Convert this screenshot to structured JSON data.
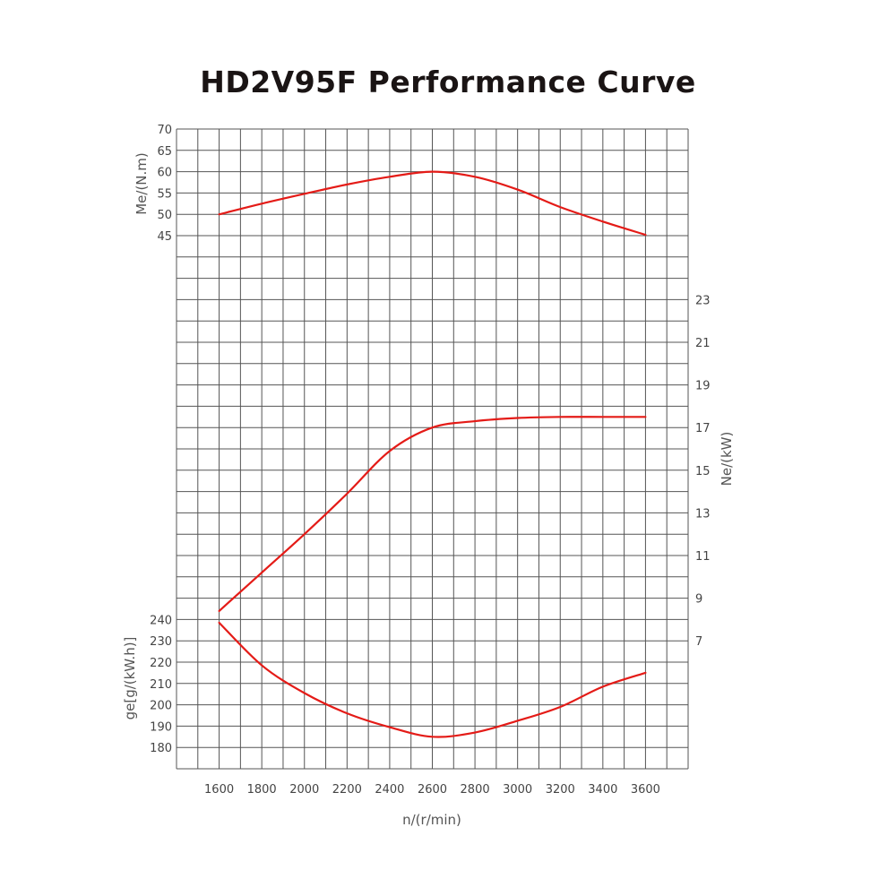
{
  "title": "HD2V95F Performance Curve",
  "chart_data": {
    "type": "line",
    "title": "HD2V95F Performance Curve",
    "x": [
      1600,
      1800,
      2000,
      2200,
      2400,
      2600,
      2800,
      3000,
      3200,
      3400,
      3600
    ],
    "xlabel": "n/(r/min)",
    "xticks": [
      "1600",
      "1800",
      "2000",
      "2200",
      "2400",
      "2600",
      "2800",
      "3000",
      "3200",
      "3400",
      "3600"
    ],
    "grid": true,
    "axes": [
      {
        "id": "torque",
        "label": "Me/(N.m)",
        "side": "left",
        "ticks": [
          "45",
          "50",
          "55",
          "60",
          "65",
          "70"
        ]
      },
      {
        "id": "power",
        "label": "Ne/(kW)",
        "side": "right",
        "ticks": [
          "7",
          "9",
          "11",
          "13",
          "15",
          "17",
          "19",
          "21",
          "23"
        ]
      },
      {
        "id": "consumption",
        "label": "ge[g/(kW.h)]",
        "side": "left",
        "ticks": [
          "180",
          "190",
          "200",
          "210",
          "220",
          "230",
          "240"
        ]
      }
    ],
    "series": [
      {
        "axis": "torque",
        "color": "#e41b17",
        "values": [
          50.0,
          52.5,
          54.8,
          57.0,
          58.8,
          60.0,
          58.8,
          55.8,
          51.7,
          48.3,
          45.2
        ]
      },
      {
        "axis": "power",
        "color": "#e41b17",
        "values": [
          8.4,
          10.2,
          12.0,
          13.9,
          15.9,
          17.0,
          17.3,
          17.45,
          17.5,
          17.5,
          17.5
        ]
      },
      {
        "axis": "consumption",
        "color": "#e41b17",
        "values": [
          238.5,
          218.5,
          205.5,
          196.0,
          189.5,
          185.0,
          187.0,
          192.5,
          199.0,
          208.5,
          215.0
        ]
      }
    ]
  }
}
